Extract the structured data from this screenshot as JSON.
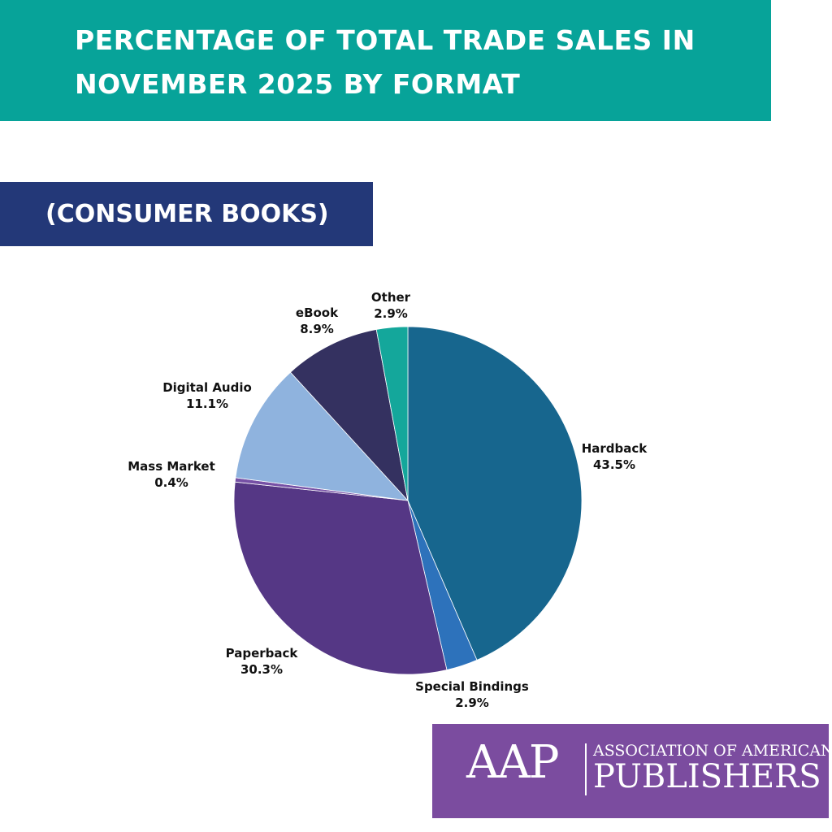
{
  "header": {
    "title_line1": "PERCENTAGE OF TOTAL TRADE SALES IN",
    "title_line2": "NOVEMBER 2025 BY FORMAT",
    "subtitle": "(CONSUMER BOOKS)"
  },
  "chart_data": {
    "type": "pie",
    "title": "PERCENTAGE OF TOTAL TRADE SALES IN NOVEMBER 2025 BY FORMAT",
    "subtitle": "(CONSUMER BOOKS)",
    "unit": "%",
    "slices": [
      {
        "label": "Hardback",
        "value": 43.5,
        "display": "43.5%",
        "color": "#17668e"
      },
      {
        "label": "Special Bindings",
        "value": 2.9,
        "display": "2.9%",
        "color": "#2d72bb"
      },
      {
        "label": "Paperback",
        "value": 30.3,
        "display": "30.3%",
        "color": "#553785"
      },
      {
        "label": "Mass Market",
        "value": 0.4,
        "display": "0.4%",
        "color": "#7650a5"
      },
      {
        "label": "Digital Audio",
        "value": 11.1,
        "display": "11.1%",
        "color": "#8fb3de"
      },
      {
        "label": "eBook",
        "value": 8.9,
        "display": "8.9%",
        "color": "#343160"
      },
      {
        "label": "Other",
        "value": 2.9,
        "display": "2.9%",
        "color": "#14a79b"
      }
    ],
    "start_angle_deg": 0,
    "direction": "clockwise",
    "legend": "none"
  },
  "logo": {
    "mark": "AAP",
    "line1": "ASSOCIATION OF AMERICAN",
    "line2": "PUBLISHERS",
    "color": "#7b4c9f"
  },
  "colors": {
    "title_banner": "#07a399",
    "subtitle_banner": "#233878"
  }
}
